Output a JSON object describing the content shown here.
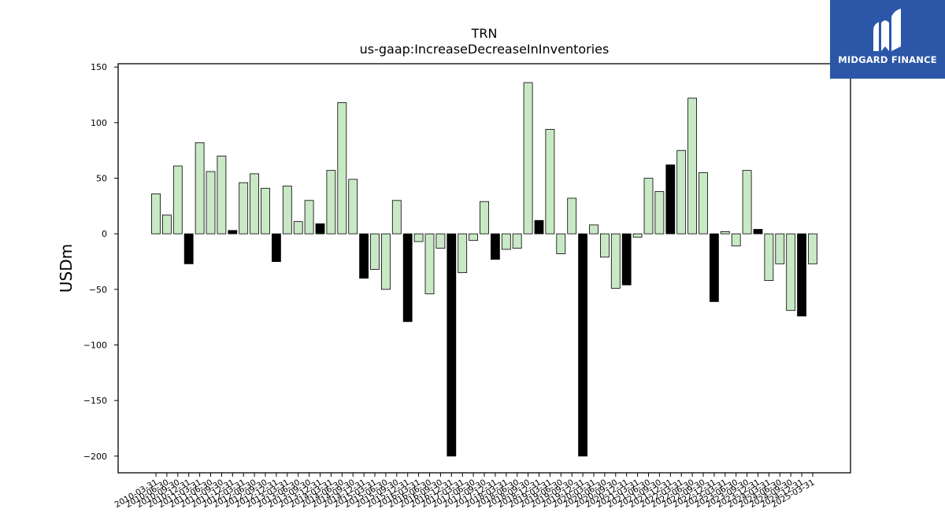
{
  "chart_data": {
    "type": "bar",
    "title": "TRN",
    "subtitle": "us-gaap:IncreaseDecreaseInInventories",
    "xlabel": "",
    "ylabel": "USDm",
    "ylim": [
      -215,
      153
    ],
    "yticks": [
      150,
      100,
      50,
      0,
      -50,
      -100,
      -150,
      -200
    ],
    "grid": false,
    "legend": "none",
    "categories": [
      "2010-03-31",
      "2010-06-30",
      "2010-09-30",
      "2010-12-31",
      "2011-03-31",
      "2011-06-30",
      "2011-09-30",
      "2011-12-31",
      "2012-03-31",
      "2012-06-30",
      "2012-09-30",
      "2012-12-31",
      "2013-03-31",
      "2013-06-30",
      "2013-09-30",
      "2013-12-31",
      "2014-03-31",
      "2014-06-30",
      "2014-09-30",
      "2014-12-31",
      "2015-03-31",
      "2015-06-30",
      "2015-09-30",
      "2015-12-31",
      "2016-03-31",
      "2016-06-30",
      "2016-09-30",
      "2016-12-31",
      "2017-03-31",
      "2017-06-30",
      "2017-09-30",
      "2017-12-31",
      "2018-03-31",
      "2018-06-30",
      "2018-09-30",
      "2018-12-31",
      "2019-03-31",
      "2019-06-30",
      "2019-09-30",
      "2019-12-31",
      "2020-03-31",
      "2020-06-30",
      "2020-09-30",
      "2020-12-31",
      "2021-03-31",
      "2021-06-30",
      "2021-09-30",
      "2021-12-31",
      "2022-03-31",
      "2022-06-30",
      "2022-09-30",
      "2022-12-31",
      "2023-03-31",
      "2023-06-30",
      "2023-09-30",
      "2023-12-31",
      "2024-03-31",
      "2024-06-30",
      "2024-09-30",
      "2024-12-31",
      "2025-03-31"
    ],
    "values": [
      36,
      17,
      61,
      -27,
      82,
      56,
      70,
      3,
      46,
      54,
      41,
      -25,
      43,
      11,
      30,
      9,
      57,
      118,
      49,
      -40,
      -32,
      -50,
      30,
      -79,
      -7,
      -54,
      -13,
      -200,
      -35,
      -6,
      29,
      -23,
      -14,
      -13,
      136,
      12,
      94,
      -18,
      32,
      -200,
      8,
      -21,
      -49,
      -46,
      -3,
      50,
      38,
      62,
      75,
      122,
      55,
      -61,
      2,
      -11,
      57,
      4,
      -42,
      -27,
      -69,
      -74,
      -27
    ],
    "q4_flags": [
      false,
      false,
      false,
      true,
      false,
      false,
      false,
      true,
      false,
      false,
      false,
      true,
      false,
      false,
      false,
      true,
      false,
      false,
      false,
      true,
      false,
      false,
      false,
      true,
      false,
      false,
      false,
      true,
      false,
      false,
      false,
      true,
      false,
      false,
      false,
      true,
      false,
      false,
      false,
      true,
      false,
      false,
      false,
      true,
      false,
      false,
      false,
      true,
      false,
      false,
      false,
      true,
      false,
      false,
      false,
      true,
      false,
      false,
      false,
      true,
      false
    ],
    "colors": {
      "quarter_bar": "#c9e8c5",
      "q4_bar": "#000000",
      "bar_edge": "#000000"
    }
  },
  "logo": {
    "text": "MIDGARD FINANCE",
    "background": "#2c57a8"
  }
}
